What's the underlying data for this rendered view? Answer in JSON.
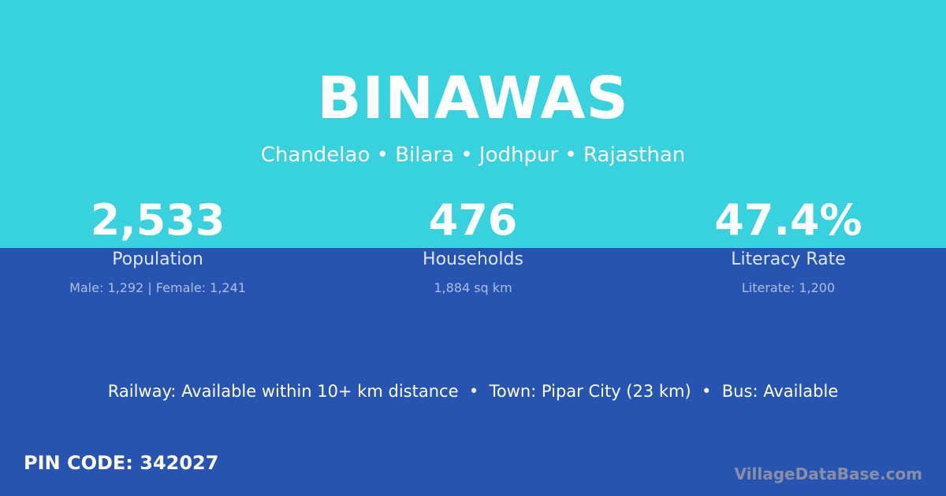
{
  "village": {
    "name": "BINAWAS",
    "location": "Chandelao • Bilara • Jodhpur • Rajasthan"
  },
  "stats": [
    {
      "value": "2,533",
      "label": "Population",
      "detail": "Male: 1,292 | Female: 1,241"
    },
    {
      "value": "476",
      "label": "Households",
      "detail": "1,884 sq km"
    },
    {
      "value": "47.4%",
      "label": "Literacy Rate",
      "detail": "Literate: 1,200"
    }
  ],
  "info": "Railway: Available within 10+ km distance  •  Town: Pipar City (23 km)  •  Bus: Available",
  "pin": "PIN CODE: 342027",
  "watermark": "VillageDataBase.com",
  "colors": {
    "top": "#38d1de",
    "bottom": "#2854b1"
  }
}
